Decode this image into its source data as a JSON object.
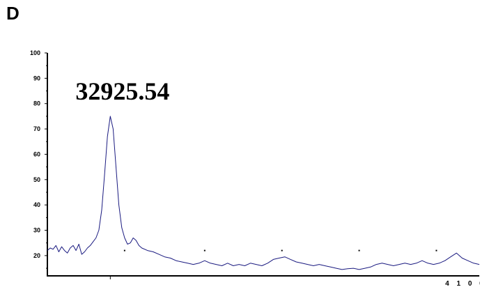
{
  "panel": {
    "label": "D"
  },
  "chart_data": {
    "type": "line",
    "title": "",
    "xlabel": "",
    "ylabel": "",
    "ylim": [
      12,
      100
    ],
    "xlim": [
      26700,
      41800
    ],
    "yticks": [
      20,
      30,
      40,
      50,
      60,
      70,
      80,
      90,
      100
    ],
    "x_tick_labels": [
      {
        "x": 41000,
        "label": "4 1 0 0 0"
      }
    ],
    "x_major_ticks": [
      28900
    ],
    "x_minor_ticks": [
      29400,
      32200,
      34900,
      37600,
      40300
    ],
    "annotations": [
      {
        "text": "32925.54",
        "x": 28900,
        "y": 75
      }
    ],
    "grid": false,
    "legend": "none",
    "colors": {
      "line": "#1a1a80",
      "axis": "#000000"
    },
    "series": [
      {
        "values": [
          [
            26700,
            22
          ],
          [
            26800,
            23
          ],
          [
            26900,
            22.5
          ],
          [
            27000,
            24
          ],
          [
            27100,
            21.5
          ],
          [
            27200,
            23.5
          ],
          [
            27300,
            22
          ],
          [
            27400,
            21
          ],
          [
            27500,
            23
          ],
          [
            27600,
            24
          ],
          [
            27700,
            22
          ],
          [
            27800,
            24.5
          ],
          [
            27900,
            20.5
          ],
          [
            28000,
            21.5
          ],
          [
            28100,
            23
          ],
          [
            28200,
            24
          ],
          [
            28300,
            25.5
          ],
          [
            28400,
            27
          ],
          [
            28500,
            30
          ],
          [
            28600,
            38
          ],
          [
            28700,
            52
          ],
          [
            28800,
            67
          ],
          [
            28900,
            75
          ],
          [
            29000,
            70
          ],
          [
            29100,
            55
          ],
          [
            29200,
            40
          ],
          [
            29300,
            31
          ],
          [
            29400,
            27
          ],
          [
            29500,
            24.5
          ],
          [
            29600,
            25
          ],
          [
            29700,
            27
          ],
          [
            29800,
            26
          ],
          [
            29900,
            24
          ],
          [
            30000,
            23
          ],
          [
            30200,
            22
          ],
          [
            30400,
            21.5
          ],
          [
            30600,
            20.5
          ],
          [
            30800,
            19.5
          ],
          [
            31000,
            19
          ],
          [
            31200,
            18
          ],
          [
            31400,
            17.5
          ],
          [
            31600,
            17
          ],
          [
            31800,
            16.5
          ],
          [
            32000,
            17
          ],
          [
            32200,
            18
          ],
          [
            32400,
            17
          ],
          [
            32600,
            16.5
          ],
          [
            32800,
            16
          ],
          [
            33000,
            17
          ],
          [
            33200,
            16
          ],
          [
            33400,
            16.5
          ],
          [
            33600,
            16
          ],
          [
            33800,
            17
          ],
          [
            34000,
            16.5
          ],
          [
            34200,
            16
          ],
          [
            34400,
            17
          ],
          [
            34600,
            18.5
          ],
          [
            34800,
            19
          ],
          [
            35000,
            19.5
          ],
          [
            35200,
            18.5
          ],
          [
            35400,
            17.5
          ],
          [
            35600,
            17
          ],
          [
            35800,
            16.5
          ],
          [
            36000,
            16
          ],
          [
            36200,
            16.5
          ],
          [
            36400,
            16
          ],
          [
            36600,
            15.5
          ],
          [
            36800,
            15
          ],
          [
            37000,
            14.5
          ],
          [
            37200,
            14.8
          ],
          [
            37400,
            15
          ],
          [
            37600,
            14.5
          ],
          [
            37800,
            15
          ],
          [
            38000,
            15.5
          ],
          [
            38200,
            16.5
          ],
          [
            38400,
            17
          ],
          [
            38600,
            16.5
          ],
          [
            38800,
            16
          ],
          [
            39000,
            16.5
          ],
          [
            39200,
            17
          ],
          [
            39400,
            16.5
          ],
          [
            39600,
            17
          ],
          [
            39800,
            18
          ],
          [
            40000,
            17
          ],
          [
            40200,
            16.5
          ],
          [
            40400,
            17
          ],
          [
            40600,
            18
          ],
          [
            40800,
            19.5
          ],
          [
            41000,
            21
          ],
          [
            41200,
            19
          ],
          [
            41400,
            18
          ],
          [
            41600,
            17
          ],
          [
            41800,
            16.5
          ]
        ]
      }
    ]
  }
}
